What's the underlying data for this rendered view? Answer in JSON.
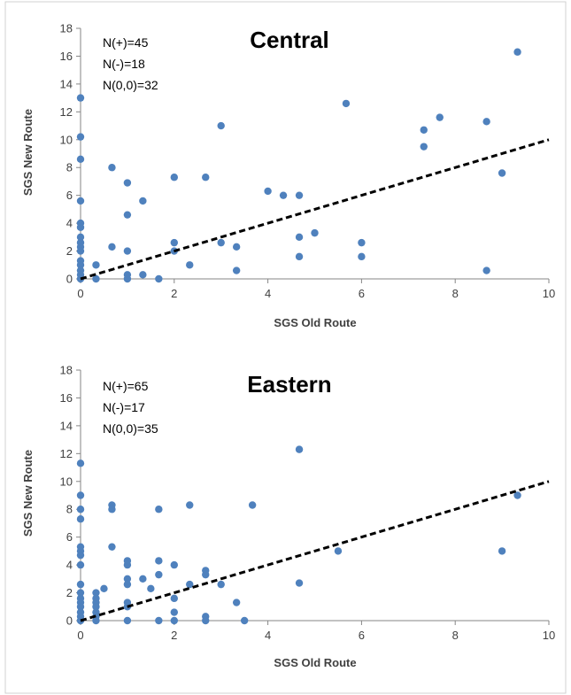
{
  "colors": {
    "point": "#4f81bd",
    "line": "#000000",
    "axis": "#868686",
    "text": "#404040",
    "border": "#7f7f7f"
  },
  "chart_data": [
    {
      "type": "scatter",
      "title": "Central",
      "xlabel": "SGS Old Route",
      "ylabel": "SGS New Route",
      "xlim": [
        0,
        10
      ],
      "ylim": [
        0,
        18
      ],
      "x_ticks": [
        "0",
        "2",
        "4",
        "6",
        "8",
        "10"
      ],
      "y_ticks": [
        "0",
        "2",
        "4",
        "6",
        "8",
        "10",
        "12",
        "14",
        "16",
        "18"
      ],
      "annotations": [
        "N(+)=45",
        "N(-)=18",
        "N(0,0)=32"
      ],
      "grid": false,
      "reference_line": {
        "style": "dashed",
        "x": [
          0,
          10
        ],
        "y": [
          0,
          10
        ]
      },
      "points": [
        [
          0,
          13
        ],
        [
          0,
          10.2
        ],
        [
          0,
          8.6
        ],
        [
          0,
          5.6
        ],
        [
          0,
          4
        ],
        [
          0,
          3.7
        ],
        [
          0,
          3
        ],
        [
          0,
          2.6
        ],
        [
          0,
          2.3
        ],
        [
          0,
          2
        ],
        [
          0,
          1.3
        ],
        [
          0,
          1
        ],
        [
          0,
          0.6
        ],
        [
          0,
          0.3
        ],
        [
          0,
          0
        ],
        [
          0.33,
          1
        ],
        [
          0.33,
          0
        ],
        [
          0.67,
          8
        ],
        [
          0.67,
          2.3
        ],
        [
          1,
          6.9
        ],
        [
          1,
          4.6
        ],
        [
          1,
          2
        ],
        [
          1,
          0.3
        ],
        [
          1,
          0
        ],
        [
          1.33,
          5.6
        ],
        [
          1.33,
          0.3
        ],
        [
          1.67,
          0
        ],
        [
          2,
          7.3
        ],
        [
          2,
          2.6
        ],
        [
          2,
          2
        ],
        [
          2.33,
          1
        ],
        [
          2.67,
          7.3
        ],
        [
          3,
          11
        ],
        [
          3,
          2.6
        ],
        [
          3.33,
          2.3
        ],
        [
          3.33,
          0.6
        ],
        [
          4,
          6.3
        ],
        [
          4.33,
          6
        ],
        [
          4.67,
          6
        ],
        [
          4.67,
          3
        ],
        [
          4.67,
          1.6
        ],
        [
          5,
          3.3
        ],
        [
          5.67,
          12.6
        ],
        [
          6,
          2.6
        ],
        [
          6,
          1.6
        ],
        [
          7.33,
          10.7
        ],
        [
          7.33,
          9.5
        ],
        [
          7.67,
          11.6
        ],
        [
          8.67,
          11.3
        ],
        [
          8.67,
          0.6
        ],
        [
          9,
          7.6
        ],
        [
          9.33,
          16.3
        ]
      ]
    },
    {
      "type": "scatter",
      "title": "Eastern",
      "xlabel": "SGS Old Route",
      "ylabel": "SGS New Route",
      "xlim": [
        0,
        10
      ],
      "ylim": [
        0,
        18
      ],
      "x_ticks": [
        "0",
        "2",
        "4",
        "6",
        "8",
        "10"
      ],
      "y_ticks": [
        "0",
        "2",
        "4",
        "6",
        "8",
        "10",
        "12",
        "14",
        "16",
        "18"
      ],
      "annotations": [
        "N(+)=65",
        "N(-)=17",
        "N(0,0)=35"
      ],
      "grid": false,
      "reference_line": {
        "style": "dashed",
        "x": [
          0,
          10
        ],
        "y": [
          0,
          10
        ]
      },
      "points": [
        [
          0,
          11.3
        ],
        [
          0,
          9
        ],
        [
          0,
          8
        ],
        [
          0,
          7.3
        ],
        [
          0,
          5.3
        ],
        [
          0,
          5
        ],
        [
          0,
          4.7
        ],
        [
          0,
          4
        ],
        [
          0,
          2.6
        ],
        [
          0,
          2
        ],
        [
          0,
          1.6
        ],
        [
          0,
          1.3
        ],
        [
          0,
          1
        ],
        [
          0,
          0.6
        ],
        [
          0,
          0.3
        ],
        [
          0,
          0
        ],
        [
          0.33,
          2
        ],
        [
          0.33,
          1.6
        ],
        [
          0.33,
          1.3
        ],
        [
          0.33,
          1
        ],
        [
          0.33,
          0.6
        ],
        [
          0.33,
          0.3
        ],
        [
          0.33,
          0
        ],
        [
          0.5,
          2.3
        ],
        [
          0.67,
          8.3
        ],
        [
          0.67,
          8
        ],
        [
          0.67,
          5.3
        ],
        [
          1,
          4.3
        ],
        [
          1,
          4
        ],
        [
          1,
          3
        ],
        [
          1,
          2.6
        ],
        [
          1,
          1.3
        ],
        [
          1,
          1
        ],
        [
          1,
          0
        ],
        [
          1.33,
          3
        ],
        [
          1.5,
          2.3
        ],
        [
          1.67,
          4.3
        ],
        [
          1.67,
          3.3
        ],
        [
          1.67,
          8
        ],
        [
          1.67,
          0
        ],
        [
          2,
          4
        ],
        [
          2,
          1.6
        ],
        [
          2,
          0.6
        ],
        [
          2,
          0
        ],
        [
          2.33,
          8.3
        ],
        [
          2.33,
          2.6
        ],
        [
          2.67,
          3.6
        ],
        [
          2.67,
          3.3
        ],
        [
          2.67,
          0.3
        ],
        [
          2.67,
          0
        ],
        [
          3,
          2.6
        ],
        [
          3.33,
          1.3
        ],
        [
          3.5,
          0
        ],
        [
          3.67,
          8.3
        ],
        [
          4.67,
          12.3
        ],
        [
          4.67,
          2.7
        ],
        [
          5.5,
          5
        ],
        [
          9,
          5
        ],
        [
          9.33,
          9
        ]
      ]
    }
  ]
}
